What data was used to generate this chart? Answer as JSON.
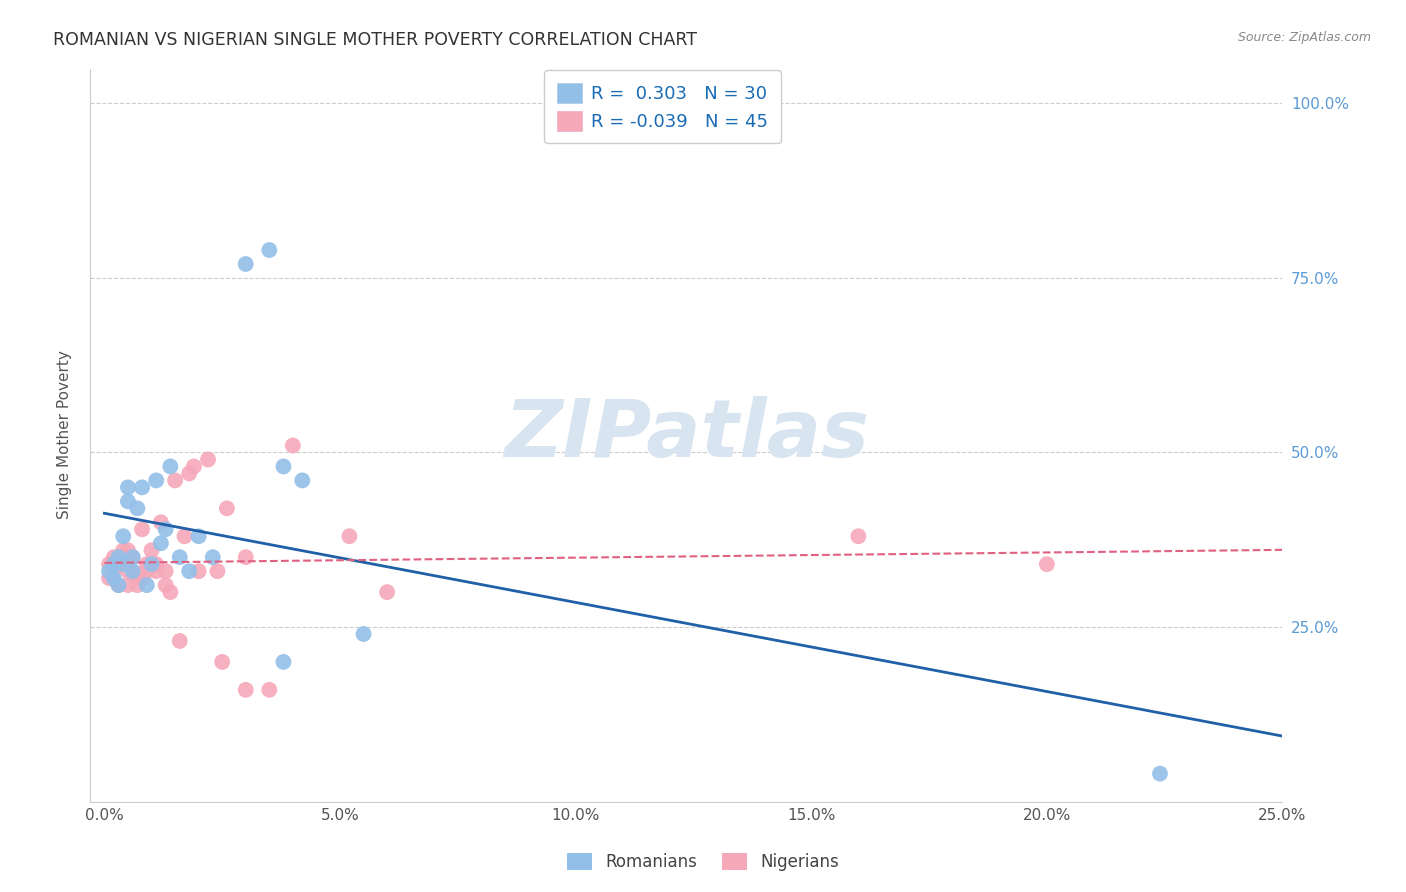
{
  "title": "ROMANIAN VS NIGERIAN SINGLE MOTHER POVERTY CORRELATION CHART",
  "source": "Source: ZipAtlas.com",
  "ylabel": "Single Mother Poverty",
  "xlim": [
    0.0,
    0.25
  ],
  "ylim": [
    0.0,
    1.05
  ],
  "r_romanian": 0.303,
  "n_romanian": 30,
  "r_nigerian": -0.039,
  "n_nigerian": 45,
  "blue_color": "#92bfe8",
  "pink_color": "#f5a8b8",
  "blue_line_color": "#2060a8",
  "pink_line_color": "#e06080",
  "watermark": "ZIPatlas",
  "watermark_color": "#d8e4f0",
  "legend_r_color": "#1a6bb5",
  "romanians_x": [
    0.001,
    0.002,
    0.002,
    0.003,
    0.003,
    0.004,
    0.004,
    0.005,
    0.005,
    0.006,
    0.006,
    0.007,
    0.008,
    0.009,
    0.01,
    0.011,
    0.012,
    0.013,
    0.014,
    0.016,
    0.018,
    0.02,
    0.023,
    0.03,
    0.035,
    0.038,
    0.042,
    0.055,
    0.038,
    0.224
  ],
  "romanians_y": [
    0.33,
    0.34,
    0.32,
    0.35,
    0.31,
    0.38,
    0.34,
    0.43,
    0.45,
    0.35,
    0.33,
    0.42,
    0.45,
    0.31,
    0.34,
    0.46,
    0.37,
    0.39,
    0.48,
    0.35,
    0.33,
    0.38,
    0.35,
    0.77,
    0.79,
    0.48,
    0.46,
    0.24,
    0.2,
    0.04
  ],
  "nigerians_x": [
    0.001,
    0.001,
    0.002,
    0.002,
    0.003,
    0.003,
    0.004,
    0.004,
    0.005,
    0.005,
    0.005,
    0.006,
    0.006,
    0.007,
    0.007,
    0.008,
    0.008,
    0.009,
    0.009,
    0.01,
    0.01,
    0.011,
    0.011,
    0.012,
    0.013,
    0.013,
    0.014,
    0.015,
    0.016,
    0.017,
    0.018,
    0.019,
    0.02,
    0.022,
    0.024,
    0.025,
    0.026,
    0.03,
    0.03,
    0.035,
    0.04,
    0.052,
    0.06,
    0.16,
    0.2
  ],
  "nigerians_y": [
    0.34,
    0.32,
    0.35,
    0.33,
    0.34,
    0.31,
    0.34,
    0.36,
    0.33,
    0.31,
    0.36,
    0.35,
    0.33,
    0.31,
    0.32,
    0.39,
    0.32,
    0.34,
    0.33,
    0.34,
    0.36,
    0.34,
    0.33,
    0.4,
    0.33,
    0.31,
    0.3,
    0.46,
    0.23,
    0.38,
    0.47,
    0.48,
    0.33,
    0.49,
    0.33,
    0.2,
    0.42,
    0.16,
    0.35,
    0.16,
    0.51,
    0.38,
    0.3,
    0.38,
    0.34
  ],
  "grid_color": "#cccccc",
  "background_color": "#ffffff",
  "right_tick_color": "#5b9bd5",
  "left_tick_color": "#888888",
  "x_tick_positions": [
    0.0,
    0.05,
    0.1,
    0.15,
    0.2,
    0.25
  ],
  "x_tick_labels": [
    "0.0%",
    "5.0%",
    "10.0%",
    "15.0%",
    "20.0%",
    "25.0%"
  ],
  "y_tick_positions": [
    0.0,
    0.25,
    0.5,
    0.75,
    1.0
  ],
  "y_tick_labels_right": [
    "",
    "25.0%",
    "50.0%",
    "75.0%",
    "100.0%"
  ]
}
